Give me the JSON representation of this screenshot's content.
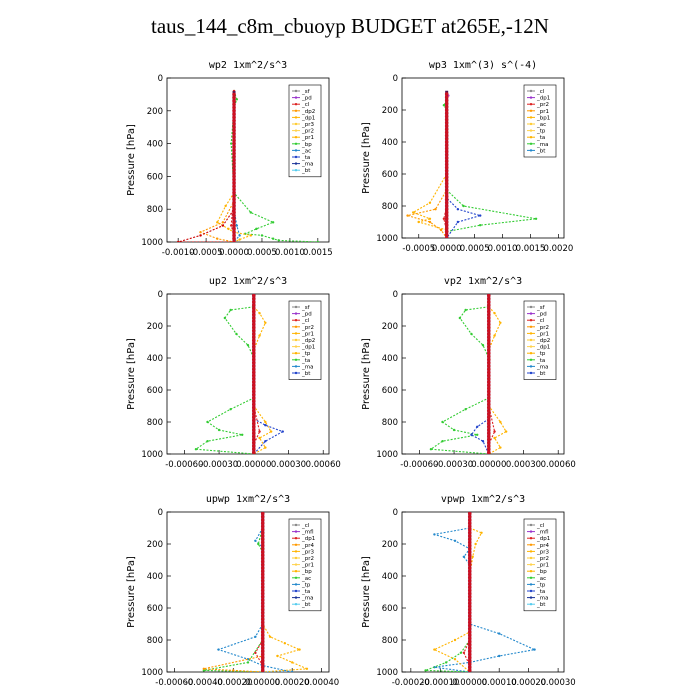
{
  "page": {
    "title": "taus_144_c8m_cbuoyp  BUDGET at265E,-12N"
  },
  "chart_data": [
    {
      "type": "line",
      "title": "wp2  1xm^2/s^3",
      "ylabel": "Pressure [hPa]",
      "ylim": [
        1000,
        0
      ],
      "xlim": [
        -0.0012,
        0.0017
      ],
      "xticks": [
        -0.001,
        -0.0005,
        0.0,
        0.0005,
        0.001,
        0.0015
      ],
      "xtick_labels": [
        "-0.0010",
        "-0.0005",
        "0.0000",
        "0.0005",
        "0.0010",
        "0.0015"
      ],
      "yticks": [
        0,
        200,
        400,
        600,
        800,
        1000
      ],
      "ytick_labels": [
        "0",
        "200",
        "400",
        "600",
        "800",
        "1000"
      ],
      "legend_position": "top-right",
      "legend": [
        "_sf",
        "_pd",
        "_cl",
        "_dp2",
        "_dp1",
        "_pr3",
        "_pr2",
        "_pr1",
        "_bp",
        "_ac",
        "_ta",
        "_ma",
        "_bt"
      ],
      "series": [
        {
          "name": "_bp",
          "color": "#33cc33",
          "x": [
            0.0,
            5e-05,
            0.0,
            -5e-05,
            0.0,
            0.0003,
            0.0007,
            0.0004,
            0.0002,
            0.0005,
            0.0007,
            0.0008,
            0.0015
          ],
          "y": [
            80,
            130,
            180,
            400,
            700,
            820,
            880,
            920,
            950,
            960,
            980,
            990,
            1000
          ]
        },
        {
          "name": "_pr2",
          "color": "#ffb400",
          "x": [
            0.0,
            0.0,
            0.0,
            -0.00015,
            -0.0003,
            -0.0001,
            0.0,
            0.0003,
            0.0001,
            0.0
          ],
          "y": [
            80,
            400,
            700,
            780,
            880,
            920,
            940,
            960,
            985,
            1000
          ]
        },
        {
          "name": "_pr1",
          "color": "#ff9900",
          "x": [
            0.0,
            0.0,
            -0.0002,
            -0.0006,
            -0.0003,
            0.0
          ],
          "y": [
            80,
            750,
            880,
            940,
            980,
            1000
          ]
        },
        {
          "name": "_dp1",
          "color": "#cc0000",
          "x": [
            0.0,
            0.0,
            -0.0002,
            -0.0006,
            -0.001,
            0.0
          ],
          "y": [
            80,
            800,
            900,
            960,
            1000,
            1000
          ]
        },
        {
          "name": "_ac",
          "color": "#2288cc",
          "x": [
            0.0,
            0.0,
            5e-05,
            0.0001,
            0.0
          ],
          "y": [
            80,
            800,
            900,
            960,
            1000
          ]
        },
        {
          "name": "_cl",
          "color": "#dd2222",
          "x": [
            0.0,
            0.0,
            -5e-05,
            0.0,
            0.0
          ],
          "y": [
            80,
            700,
            900,
            960,
            1000
          ]
        }
      ]
    },
    {
      "type": "line",
      "title": "wp3  1xm^(3) s^(-4)",
      "ylabel": "Pressure [hPa]",
      "ylim": [
        1000,
        0
      ],
      "xlim": [
        -0.0008,
        0.0021
      ],
      "xticks": [
        -0.0005,
        0.0,
        0.0005,
        0.001,
        0.0015,
        0.002
      ],
      "xtick_labels": [
        "-0.0005",
        "0.0000",
        "0.0005",
        "0.0010",
        "0.0015",
        "0.0020"
      ],
      "yticks": [
        0,
        200,
        400,
        600,
        800,
        1000
      ],
      "ytick_labels": [
        "0",
        "200",
        "400",
        "600",
        "800",
        "1000"
      ],
      "legend_position": "top-right",
      "legend": [
        "_cl",
        "_dp1",
        "_pr2",
        "_pr1",
        "_bp1",
        "_ac",
        "_tp",
        "_ta",
        "_ma",
        "_bt"
      ],
      "series": [
        {
          "name": "_bp1",
          "color": "#33cc33",
          "x": [
            0.0,
            -5e-05,
            0.0,
            0.0,
            0.0003,
            0.0016,
            0.0006,
            0.0,
            0.0
          ],
          "y": [
            140,
            170,
            200,
            700,
            800,
            880,
            920,
            960,
            1000
          ]
        },
        {
          "name": "_pr2",
          "color": "#ffb400",
          "x": [
            0.0,
            0.0,
            -0.0003,
            -0.0006,
            -0.0003,
            -0.0005,
            0.0,
            0.0
          ],
          "y": [
            100,
            600,
            780,
            840,
            880,
            900,
            950,
            1000
          ]
        },
        {
          "name": "_pr1",
          "color": "#ff9900",
          "x": [
            0.0,
            0.0,
            -0.0002,
            -0.0007,
            -0.0003,
            -0.0001,
            0.0
          ],
          "y": [
            100,
            700,
            820,
            860,
            900,
            950,
            1000
          ]
        },
        {
          "name": "_tp",
          "color": "#2244cc",
          "x": [
            0.0,
            0.0,
            0.0002,
            0.0006,
            0.0002,
            0.0
          ],
          "y": [
            100,
            750,
            820,
            860,
            900,
            1000
          ]
        },
        {
          "name": "_cl",
          "color": "#dd2222",
          "x": [
            0.0,
            0.0,
            -5e-05,
            0.0,
            0.0
          ],
          "y": [
            100,
            800,
            880,
            960,
            1000
          ]
        },
        {
          "name": "_dp1",
          "color": "#cc44cc",
          "x": [
            3e-05,
            0.0
          ],
          "y": [
            110,
            130
          ]
        }
      ]
    },
    {
      "type": "line",
      "title": "up2  1xm^2/s^3",
      "ylabel": "Pressure [hPa]",
      "ylim": [
        1000,
        0
      ],
      "xlim": [
        -0.00075,
        0.00065
      ],
      "xticks": [
        -0.0006,
        -0.0003,
        0.0,
        0.0003,
        0.0006
      ],
      "xtick_labels": [
        "-0.00060",
        "-0.00030",
        "0.00000",
        "0.00030",
        "0.00060"
      ],
      "yticks": [
        0,
        200,
        400,
        600,
        800,
        1000
      ],
      "ytick_labels": [
        "0",
        "200",
        "400",
        "600",
        "800",
        "1000"
      ],
      "legend_position": "top-right",
      "legend": [
        "_sf",
        "_pd",
        "_cl",
        "_pr2",
        "_pr1",
        "_dp2",
        "_dp1",
        "_tp",
        "_ta",
        "_ma",
        "_bt"
      ],
      "series": [
        {
          "name": "_dp1",
          "color": "#33cc33",
          "x": [
            0.0,
            -0.0002,
            -0.00025,
            -0.00015,
            -5e-05,
            0.0,
            0.0,
            -0.0002,
            -0.0004,
            -0.0003,
            -0.0001,
            -0.0004,
            -0.0005,
            0.0
          ],
          "y": [
            80,
            100,
            150,
            250,
            320,
            400,
            650,
            720,
            800,
            850,
            880,
            920,
            970,
            1000
          ]
        },
        {
          "name": "_pr2",
          "color": "#ffb400",
          "x": [
            0.0,
            5e-05,
            0.0001,
            5e-05,
            0.0,
            0.0,
            0.0001,
            0.00015,
            5e-05,
            0.0001,
            0.0
          ],
          "y": [
            80,
            120,
            180,
            260,
            350,
            700,
            800,
            860,
            900,
            960,
            1000
          ]
        },
        {
          "name": "_tp",
          "color": "#2244cc",
          "x": [
            0.0,
            0.0,
            0.0001,
            0.00025,
            0.0001,
            0.0
          ],
          "y": [
            80,
            780,
            820,
            860,
            920,
            1000
          ]
        },
        {
          "name": "_cl",
          "color": "#dd2222",
          "x": [
            0.0,
            0.0,
            5e-05,
            0.0,
            0.0
          ],
          "y": [
            80,
            700,
            860,
            940,
            1000
          ]
        }
      ]
    },
    {
      "type": "line",
      "title": "vp2  1xm^2/s^3",
      "ylabel": "Pressure [hPa]",
      "ylim": [
        1000,
        0
      ],
      "xlim": [
        -0.00075,
        0.00065
      ],
      "xticks": [
        -0.0006,
        -0.0003,
        0.0,
        0.0003,
        0.0006
      ],
      "xtick_labels": [
        "-0.00060",
        "-0.00030",
        "0.00000",
        "0.00030",
        "0.00060"
      ],
      "yticks": [
        0,
        200,
        400,
        600,
        800,
        1000
      ],
      "ytick_labels": [
        "0",
        "200",
        "400",
        "600",
        "800",
        "1000"
      ],
      "legend_position": "top-right",
      "legend": [
        "_sf",
        "_pd",
        "_cl",
        "_pr2",
        "_pr1",
        "_dp2",
        "_dp1",
        "_tp",
        "_ta",
        "_ma",
        "_bt"
      ],
      "series": [
        {
          "name": "_dp1",
          "color": "#33cc33",
          "x": [
            0.0,
            -0.0002,
            -0.00025,
            -0.00015,
            -5e-05,
            0.0,
            0.0,
            -0.0002,
            -0.0004,
            -0.0003,
            -0.0001,
            -0.0004,
            -0.0005,
            0.0
          ],
          "y": [
            80,
            100,
            150,
            250,
            320,
            400,
            650,
            720,
            800,
            850,
            880,
            920,
            970,
            1000
          ]
        },
        {
          "name": "_pr2",
          "color": "#ffb400",
          "x": [
            0.0,
            5e-05,
            0.0001,
            5e-05,
            0.0,
            0.0,
            0.0001,
            0.00015,
            5e-05,
            0.0001,
            0.0
          ],
          "y": [
            80,
            120,
            180,
            260,
            350,
            700,
            800,
            860,
            900,
            960,
            1000
          ]
        },
        {
          "name": "_tp",
          "color": "#2244cc",
          "x": [
            0.0,
            0.0,
            -0.0001,
            -0.00015,
            -5e-05,
            0.0
          ],
          "y": [
            80,
            780,
            830,
            880,
            920,
            1000
          ]
        },
        {
          "name": "_cl",
          "color": "#dd2222",
          "x": [
            0.0,
            0.0,
            5e-05,
            0.0,
            0.0
          ],
          "y": [
            80,
            700,
            860,
            940,
            1000
          ]
        }
      ]
    },
    {
      "type": "line",
      "title": "upwp  1xm^2/s^3",
      "ylabel": "Pressure [hPa]",
      "ylim": [
        1000,
        0
      ],
      "xlim": [
        -0.00065,
        0.00045
      ],
      "xticks": [
        -0.0006,
        -0.0004,
        -0.0002,
        0.0,
        0.0002,
        0.0004
      ],
      "xtick_labels": [
        "-0.00060",
        "-0.00040",
        "-0.00020",
        "0.00000",
        "0.00020",
        "0.00040"
      ],
      "yticks": [
        0,
        200,
        400,
        600,
        800,
        1000
      ],
      "ytick_labels": [
        "0",
        "200",
        "400",
        "600",
        "800",
        "1000"
      ],
      "legend_position": "top-right",
      "legend": [
        "_cl",
        "_mfl",
        "_dp1",
        "_pr4",
        "_pr3",
        "_pr2",
        "_pr1",
        "_bp",
        "_ac",
        "_tp",
        "_ta",
        "_ma",
        "_bt"
      ],
      "series": [
        {
          "name": "_pr2",
          "color": "#ffb400",
          "x": [
            0.0,
            0.0,
            5e-05,
            0.00015,
            0.00025,
            0.0001,
            0.0002,
            0.0003,
            0.0
          ],
          "y": [
            100,
            700,
            780,
            820,
            860,
            900,
            940,
            980,
            1000
          ]
        },
        {
          "name": "_ac",
          "color": "#2288cc",
          "x": [
            0.0,
            -5e-05,
            0.0,
            0.0,
            -5e-05,
            -0.0003,
            -0.0001,
            0.0,
            0.0002,
            0.0
          ],
          "y": [
            100,
            180,
            220,
            700,
            780,
            860,
            920,
            960,
            1000,
            1000
          ]
        },
        {
          "name": "_bp",
          "color": "#33cc33",
          "x": [
            0.0,
            -3e-05,
            0.0,
            0.0,
            -0.0001,
            -0.0004,
            0.0
          ],
          "y": [
            100,
            200,
            250,
            800,
            940,
            990,
            1000
          ]
        },
        {
          "name": "_cl",
          "color": "#dd2222",
          "x": [
            0.0,
            0.0,
            -5e-05,
            0.0,
            0.0
          ],
          "y": [
            100,
            800,
            880,
            960,
            1000
          ]
        },
        {
          "name": "_pr1",
          "color": "#ff9900",
          "x": [
            0.0,
            0.0,
            -0.0004,
            -0.0002,
            0.0
          ],
          "y": [
            100,
            900,
            980,
            990,
            1000
          ]
        }
      ]
    },
    {
      "type": "line",
      "title": "vpwp  1xm^2/s^3",
      "ylabel": "Pressure [hPa]",
      "ylim": [
        1000,
        0
      ],
      "xlim": [
        -0.00023,
        0.00032
      ],
      "xticks": [
        -0.0002,
        -0.0001,
        0.0,
        0.0001,
        0.0002,
        0.0003
      ],
      "xtick_labels": [
        "-0.00020",
        "-0.00010",
        "0.00000",
        "0.00010",
        "0.00020",
        "0.00030"
      ],
      "yticks": [
        0,
        200,
        400,
        600,
        800,
        1000
      ],
      "ytick_labels": [
        "0",
        "200",
        "400",
        "600",
        "800",
        "1000"
      ],
      "legend_position": "top-right",
      "legend": [
        "_cl",
        "_mfl",
        "_dp1",
        "_pr4",
        "_pr3",
        "_pr2",
        "_pr1",
        "_bp",
        "_ac",
        "_tp",
        "_ta",
        "_ma",
        "_bt"
      ],
      "series": [
        {
          "name": "_ac",
          "color": "#2288cc",
          "x": [
            0.0,
            -0.00012,
            -5e-05,
            0.0,
            -2e-05,
            0.0,
            0.0,
            0.0001,
            0.00022,
            0.0001,
            0.0,
            -0.00012,
            0.0
          ],
          "y": [
            100,
            140,
            180,
            230,
            280,
            330,
            700,
            760,
            860,
            900,
            940,
            970,
            1000
          ]
        },
        {
          "name": "_pr2",
          "color": "#ffb400",
          "x": [
            0.0,
            4e-05,
            2e-05,
            1e-05,
            0.0,
            0.0,
            -5e-05,
            -0.00012,
            -5e-05,
            0.0
          ],
          "y": [
            100,
            130,
            200,
            280,
            400,
            750,
            800,
            860,
            920,
            1000
          ]
        },
        {
          "name": "_bp",
          "color": "#33cc33",
          "x": [
            0.0,
            0.0,
            -3e-05,
            -8e-05,
            -0.00015,
            0.0
          ],
          "y": [
            100,
            800,
            880,
            940,
            990,
            1000
          ]
        },
        {
          "name": "_cl",
          "color": "#dd2222",
          "x": [
            0.0,
            0.0,
            -2e-05,
            0.0,
            0.0
          ],
          "y": [
            100,
            800,
            880,
            960,
            1000
          ]
        }
      ]
    }
  ]
}
